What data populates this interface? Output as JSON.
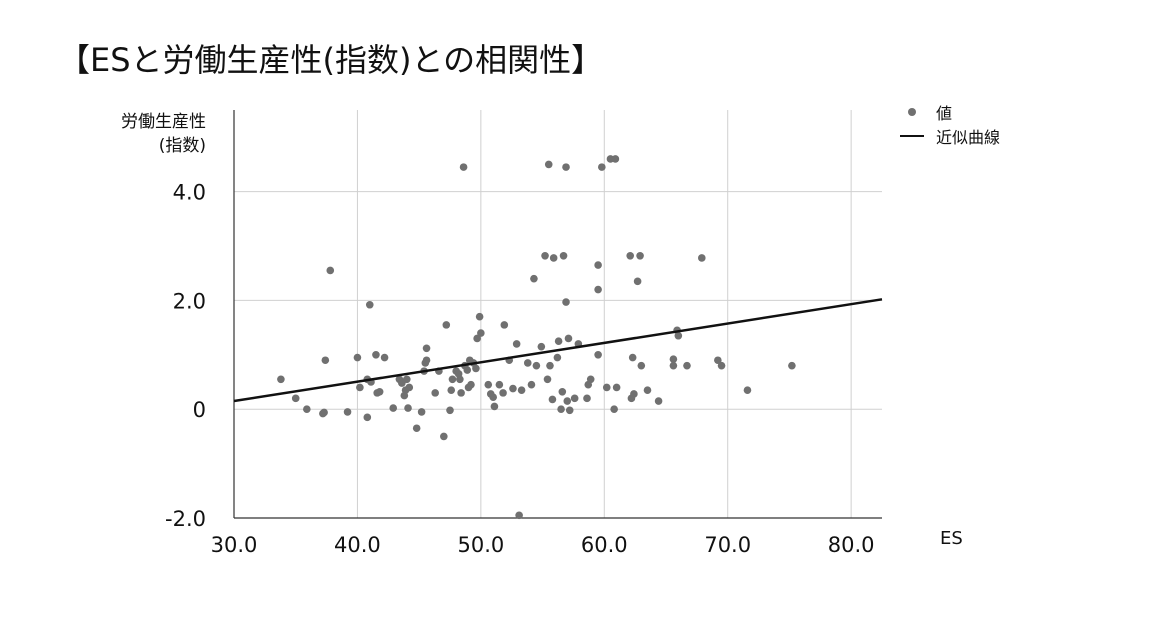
{
  "page": {
    "title": "【ESと労働生産性(指数)との相関性】"
  },
  "chart_data": {
    "type": "scatter",
    "title": "【ESと労働生産性(指数)との相関性】",
    "xlabel": "ES",
    "ylabel": [
      "労働生産性",
      "(指数)"
    ],
    "xlim": [
      30.0,
      82.5
    ],
    "ylim": [
      -2.0,
      5.5
    ],
    "xticks": [
      30,
      40,
      50,
      60,
      70,
      80
    ],
    "xtick_labels": [
      "30.0",
      "40.0",
      "50.0",
      "60.0",
      "70.0",
      "80.0"
    ],
    "yticks": [
      -2,
      0,
      2,
      4
    ],
    "ytick_labels": [
      "-2.0",
      "0",
      "2.0",
      "4.0"
    ],
    "grid": true,
    "legend_position": "top-right",
    "legend": [
      {
        "label": "値",
        "kind": "point",
        "color": "#707070"
      },
      {
        "label": "近似曲線",
        "kind": "line",
        "color": "#111111"
      }
    ],
    "series": [
      {
        "name": "値",
        "color": "#707070",
        "points": [
          [
            33.8,
            0.55
          ],
          [
            35.0,
            0.2
          ],
          [
            35.9,
            0.0
          ],
          [
            37.2,
            -0.08
          ],
          [
            37.3,
            -0.06
          ],
          [
            37.4,
            0.9
          ],
          [
            37.8,
            2.55
          ],
          [
            39.2,
            -0.05
          ],
          [
            40.0,
            0.95
          ],
          [
            40.2,
            0.4
          ],
          [
            40.8,
            -0.15
          ],
          [
            40.8,
            0.55
          ],
          [
            41.0,
            1.92
          ],
          [
            41.1,
            0.5
          ],
          [
            41.5,
            1.0
          ],
          [
            41.6,
            0.3
          ],
          [
            41.8,
            0.32
          ],
          [
            42.2,
            0.95
          ],
          [
            42.9,
            0.02
          ],
          [
            43.4,
            0.55
          ],
          [
            43.6,
            0.48
          ],
          [
            43.8,
            0.25
          ],
          [
            43.9,
            0.35
          ],
          [
            44.0,
            0.55
          ],
          [
            44.1,
            0.02
          ],
          [
            44.2,
            0.4
          ],
          [
            44.8,
            -0.35
          ],
          [
            45.2,
            -0.05
          ],
          [
            45.4,
            0.7
          ],
          [
            45.5,
            0.85
          ],
          [
            45.6,
            1.12
          ],
          [
            45.6,
            0.9
          ],
          [
            46.3,
            0.3
          ],
          [
            46.6,
            0.7
          ],
          [
            47.0,
            -0.5
          ],
          [
            47.2,
            1.55
          ],
          [
            47.5,
            -0.02
          ],
          [
            47.6,
            0.35
          ],
          [
            47.7,
            0.55
          ],
          [
            48.0,
            0.7
          ],
          [
            48.2,
            0.65
          ],
          [
            48.3,
            0.55
          ],
          [
            48.4,
            0.3
          ],
          [
            48.6,
            4.45
          ],
          [
            48.7,
            0.8
          ],
          [
            48.9,
            0.72
          ],
          [
            49.0,
            0.4
          ],
          [
            49.1,
            0.9
          ],
          [
            49.2,
            0.45
          ],
          [
            49.4,
            0.85
          ],
          [
            49.6,
            0.75
          ],
          [
            49.7,
            1.3
          ],
          [
            49.9,
            1.7
          ],
          [
            50.0,
            1.4
          ],
          [
            50.6,
            0.45
          ],
          [
            50.8,
            0.28
          ],
          [
            51.0,
            0.22
          ],
          [
            51.1,
            0.05
          ],
          [
            51.5,
            0.45
          ],
          [
            51.8,
            0.3
          ],
          [
            51.9,
            1.55
          ],
          [
            52.3,
            0.9
          ],
          [
            52.6,
            0.38
          ],
          [
            52.9,
            1.2
          ],
          [
            53.1,
            -1.95
          ],
          [
            53.3,
            0.35
          ],
          [
            53.8,
            0.85
          ],
          [
            54.1,
            0.45
          ],
          [
            54.3,
            2.4
          ],
          [
            54.5,
            0.8
          ],
          [
            54.9,
            1.15
          ],
          [
            55.2,
            2.82
          ],
          [
            55.4,
            0.55
          ],
          [
            55.5,
            4.5
          ],
          [
            55.6,
            0.8
          ],
          [
            55.8,
            0.18
          ],
          [
            55.9,
            2.78
          ],
          [
            56.2,
            0.95
          ],
          [
            56.3,
            1.25
          ],
          [
            56.5,
            0.0
          ],
          [
            56.6,
            0.32
          ],
          [
            56.7,
            2.82
          ],
          [
            56.9,
            1.97
          ],
          [
            56.9,
            4.45
          ],
          [
            57.0,
            0.15
          ],
          [
            57.1,
            1.3
          ],
          [
            57.2,
            -0.02
          ],
          [
            57.6,
            0.2
          ],
          [
            57.9,
            1.2
          ],
          [
            58.6,
            0.2
          ],
          [
            58.7,
            0.45
          ],
          [
            58.9,
            0.55
          ],
          [
            59.5,
            1.0
          ],
          [
            59.5,
            2.2
          ],
          [
            59.5,
            2.65
          ],
          [
            59.8,
            4.45
          ],
          [
            60.2,
            0.4
          ],
          [
            60.5,
            4.6
          ],
          [
            60.8,
            0.0
          ],
          [
            60.9,
            4.6
          ],
          [
            61.0,
            0.4
          ],
          [
            62.1,
            2.82
          ],
          [
            62.2,
            0.2
          ],
          [
            62.3,
            0.95
          ],
          [
            62.4,
            0.28
          ],
          [
            62.7,
            2.35
          ],
          [
            62.9,
            2.82
          ],
          [
            63.0,
            0.8
          ],
          [
            63.5,
            0.35
          ],
          [
            64.4,
            0.15
          ],
          [
            65.6,
            0.92
          ],
          [
            65.6,
            0.8
          ],
          [
            65.9,
            1.45
          ],
          [
            66.0,
            1.35
          ],
          [
            66.7,
            0.8
          ],
          [
            67.9,
            2.78
          ],
          [
            69.2,
            0.9
          ],
          [
            69.5,
            0.8
          ],
          [
            71.6,
            0.35
          ],
          [
            75.2,
            0.8
          ]
        ]
      }
    ],
    "trendline": {
      "name": "近似曲線",
      "color": "#111111",
      "points": [
        [
          30.0,
          0.15
        ],
        [
          82.5,
          2.02
        ]
      ]
    }
  }
}
